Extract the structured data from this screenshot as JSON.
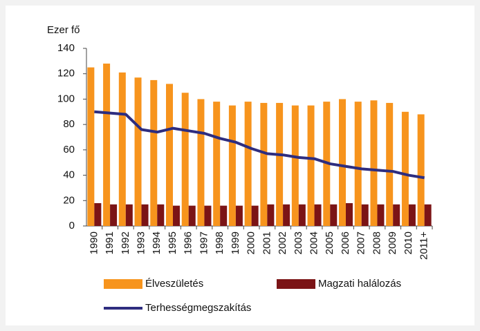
{
  "chart_data": {
    "type": "bar",
    "y_label": "Ezer fő",
    "categories": [
      "1990",
      "1991",
      "1992",
      "1993",
      "1994",
      "1995",
      "1996",
      "1997",
      "1998",
      "1999",
      "2000",
      "2001",
      "2002",
      "2003",
      "2004",
      "2005",
      "2006",
      "2007",
      "2008",
      "2009",
      "2010",
      "2011+"
    ],
    "series": [
      {
        "name": "Élveszületés",
        "type": "bar",
        "color": "#f7941d",
        "values": [
          125,
          128,
          121,
          117,
          115,
          112,
          105,
          100,
          98,
          95,
          98,
          97,
          97,
          95,
          95,
          98,
          100,
          98,
          99,
          97,
          90,
          88
        ]
      },
      {
        "name": "Magzati halálozás",
        "type": "bar",
        "color": "#7b1416",
        "values": [
          18,
          17,
          17,
          17,
          17,
          16,
          16,
          16,
          16,
          16,
          16,
          17,
          17,
          17,
          17,
          17,
          18,
          17,
          17,
          17,
          17,
          17
        ]
      },
      {
        "name": "Terhességmegszakítás",
        "type": "line",
        "color": "#2e2d7f",
        "values": [
          90,
          89,
          88,
          76,
          74,
          77,
          75,
          73,
          69,
          66,
          61,
          57,
          56,
          54,
          53,
          49,
          47,
          45,
          44,
          43,
          40,
          38
        ]
      }
    ],
    "ylim": [
      0,
      140
    ],
    "yticks": [
      0,
      20,
      40,
      60,
      80,
      100,
      120,
      140
    ],
    "grid": false
  }
}
